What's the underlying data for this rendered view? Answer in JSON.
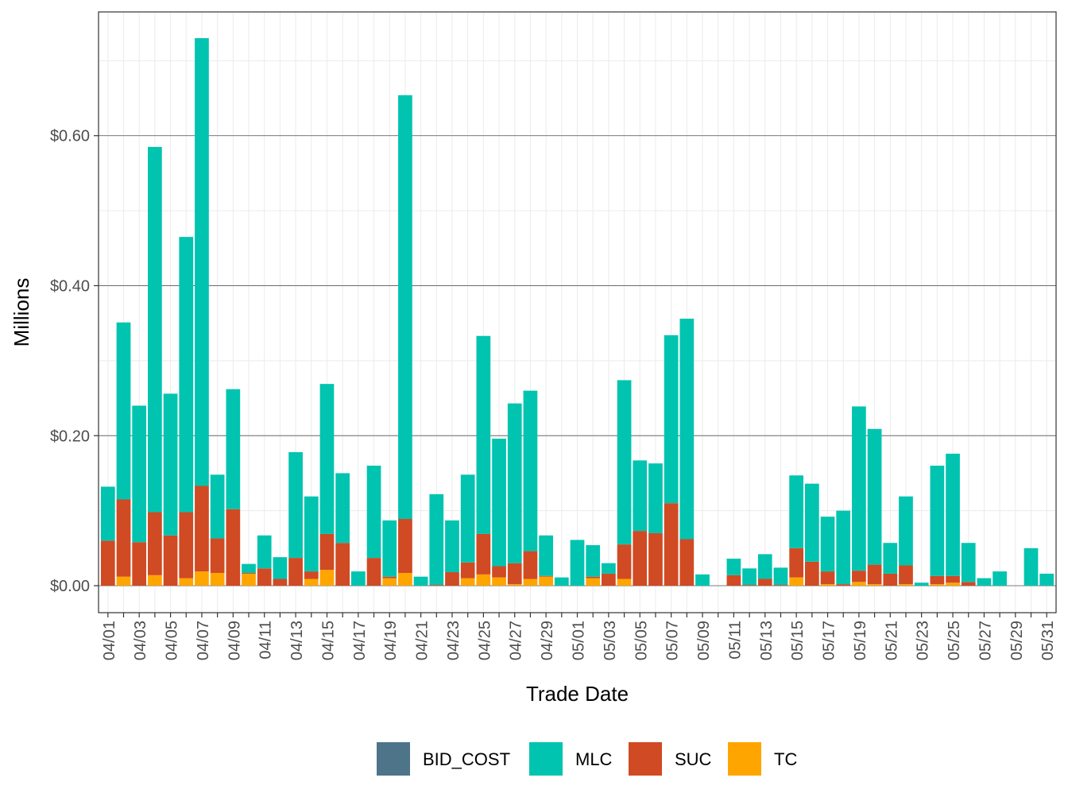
{
  "chart_data": {
    "type": "bar",
    "stacked": true,
    "title": "",
    "xlabel": "Trade Date",
    "ylabel": "Millions",
    "ylim": [
      -0.036,
      0.765
    ],
    "y_ticks": [
      0.0,
      0.2,
      0.4,
      0.6
    ],
    "y_tick_labels": [
      "$0.00",
      "$0.20",
      "$0.40",
      "$0.60"
    ],
    "grid": true,
    "legend_position": "bottom",
    "x_tick_labels": [
      "04/01",
      "04/03",
      "04/05",
      "04/07",
      "04/09",
      "04/11",
      "04/13",
      "04/15",
      "04/17",
      "04/19",
      "04/21",
      "04/23",
      "04/25",
      "04/27",
      "04/29",
      "05/01",
      "05/03",
      "05/05",
      "05/07",
      "05/09",
      "05/11",
      "05/13",
      "05/15",
      "05/17",
      "05/19",
      "05/21",
      "05/23",
      "05/25",
      "05/27",
      "05/29",
      "05/31"
    ],
    "categories": [
      "04/01",
      "04/02",
      "04/03",
      "04/04",
      "04/05",
      "04/06",
      "04/07",
      "04/08",
      "04/09",
      "04/10",
      "04/11",
      "04/12",
      "04/13",
      "04/14",
      "04/15",
      "04/16",
      "04/17",
      "04/18",
      "04/19",
      "04/20",
      "04/21",
      "04/22",
      "04/23",
      "04/24",
      "04/25",
      "04/26",
      "04/27",
      "04/28",
      "04/29",
      "04/30",
      "05/01",
      "05/02",
      "05/03",
      "05/04",
      "05/05",
      "05/06",
      "05/07",
      "05/08",
      "05/09",
      "05/10",
      "05/11",
      "05/12",
      "05/13",
      "05/14",
      "05/15",
      "05/16",
      "05/17",
      "05/18",
      "05/19",
      "05/20",
      "05/21",
      "05/22",
      "05/23",
      "05/24",
      "05/25",
      "05/26",
      "05/27",
      "05/28",
      "05/29",
      "05/30",
      "05/31"
    ],
    "series": [
      {
        "name": "BID_COST",
        "color": "#4E7489",
        "values": [
          0,
          0,
          0,
          0,
          0,
          0,
          0,
          0,
          0,
          0,
          0,
          0,
          0,
          0,
          0,
          0,
          0,
          0,
          0,
          0,
          0,
          0,
          0,
          0,
          0,
          0,
          0,
          0,
          0,
          0,
          0,
          0,
          0,
          0,
          0,
          0,
          0,
          0,
          0,
          0,
          0,
          0,
          0,
          0,
          0,
          0,
          0,
          0,
          0,
          0,
          0,
          0,
          0,
          0,
          0,
          0,
          0,
          0,
          0,
          0,
          0
        ]
      },
      {
        "name": "MLC",
        "color": "#00C4B0",
        "values": [
          0.072,
          0.236,
          0.182,
          0.487,
          0.189,
          0.367,
          0.597,
          0.085,
          0.16,
          0.012,
          0.044,
          0.029,
          0.141,
          0.1,
          0.2,
          0.093,
          0.019,
          0.123,
          0.075,
          0.565,
          0.012,
          0.121,
          0.069,
          0.117,
          0.264,
          0.17,
          0.213,
          0.214,
          0.054,
          0.011,
          0.061,
          0.042,
          0.014,
          0.219,
          0.094,
          0.093,
          0.224,
          0.294,
          0.015,
          0.0,
          0.022,
          0.022,
          0.033,
          0.023,
          0.097,
          0.104,
          0.073,
          0.098,
          0.219,
          0.181,
          0.041,
          0.092,
          0.004,
          0.147,
          0.163,
          0.052,
          0.01,
          0.019,
          0.0,
          0.05,
          0.016
        ]
      },
      {
        "name": "SUC",
        "color": "#D04A23",
        "values": [
          0.06,
          0.103,
          0.058,
          0.084,
          0.067,
          0.088,
          0.114,
          0.046,
          0.102,
          0.001,
          0.023,
          0.009,
          0.037,
          0.01,
          0.048,
          0.057,
          0.0,
          0.037,
          0.002,
          0.072,
          0.0,
          0.001,
          0.018,
          0.021,
          0.054,
          0.015,
          0.028,
          0.037,
          0.001,
          0.0,
          0.0,
          0.002,
          0.016,
          0.046,
          0.073,
          0.07,
          0.11,
          0.062,
          0.0,
          0.0,
          0.014,
          0.001,
          0.009,
          0.001,
          0.039,
          0.032,
          0.017,
          0.002,
          0.015,
          0.026,
          0.016,
          0.025,
          0.0,
          0.011,
          0.009,
          0.005,
          0.0,
          0.0,
          0.0,
          0.0,
          0.0
        ]
      },
      {
        "name": "TC",
        "color": "#FFA500",
        "values": [
          0.0,
          0.012,
          0.0,
          0.014,
          0.0,
          0.01,
          0.019,
          0.017,
          0.0,
          0.016,
          0.0,
          0.0,
          0.0,
          0.009,
          0.021,
          0.0,
          0.0,
          0.0,
          0.01,
          0.017,
          0.0,
          0.0,
          0.0,
          0.01,
          0.015,
          0.011,
          0.002,
          0.009,
          0.012,
          0.0,
          0.0,
          0.01,
          0.0,
          0.009,
          0.0,
          0.0,
          0.0,
          0.0,
          0.0,
          0.0,
          0.0,
          0.0,
          0.0,
          0.0,
          0.011,
          0.0,
          0.002,
          0.0,
          0.005,
          0.002,
          0.0,
          0.002,
          0.0,
          0.002,
          0.004,
          0.0,
          0.0,
          0.0,
          0.0,
          0.0,
          0.0
        ]
      }
    ]
  }
}
